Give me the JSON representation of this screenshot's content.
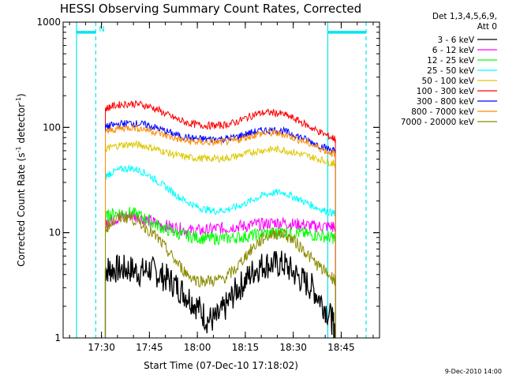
{
  "chart_data": {
    "type": "line",
    "title": "HESSI Observing Summary Count Rates, Corrected",
    "xlabel": "Start Time (07-Dec-10 17:18:02)",
    "ylabel_main": "Corrected Count Rate (s",
    "ylabel_sup1": "-1",
    "ylabel_mid": " detector",
    "ylabel_sup2": "-1",
    "ylabel_end": ")",
    "y_scale": "log",
    "ylim": [
      1,
      1000
    ],
    "xlim_minutes": [
      17.3,
      18.95
    ],
    "x_tick_labels": [
      "17:30",
      "17:45",
      "18:00",
      "18:15",
      "18:30",
      "18:45"
    ],
    "x_tick_values": [
      17.5,
      17.75,
      18.0,
      18.25,
      18.5,
      18.75
    ],
    "y_tick_labels": [
      "1",
      "10",
      "100",
      "1000"
    ],
    "y_tick_values": [
      1,
      10,
      100,
      1000
    ],
    "legend_header": [
      "Det 1,3,4,5,6,9,",
      "Att 0"
    ],
    "legend_placement": "right",
    "series": [
      {
        "name": "3 - 6 keV",
        "color": "#000000",
        "x": [
          17.52,
          17.55,
          17.6,
          17.65,
          17.7,
          17.75,
          17.8,
          17.85,
          17.9,
          17.95,
          18.0,
          18.05,
          18.1,
          18.15,
          18.2,
          18.25,
          18.3,
          18.35,
          18.4,
          18.45,
          18.5,
          18.55,
          18.6,
          18.65,
          18.7,
          18.72
        ],
        "values": [
          4.5,
          4.5,
          4.5,
          4.5,
          4.2,
          4.5,
          4.0,
          3.6,
          3.0,
          2.5,
          2.0,
          1.5,
          1.5,
          2.0,
          2.8,
          3.5,
          4.5,
          5.0,
          5.0,
          5.0,
          4.2,
          3.5,
          3.0,
          2.2,
          1.5,
          1.2
        ]
      },
      {
        "name": "6 - 12 keV",
        "color": "#ff00ff",
        "x": [
          17.52,
          17.55,
          17.6,
          17.65,
          17.7,
          17.75,
          17.8,
          17.85,
          17.9,
          17.95,
          18.0,
          18.05,
          18.1,
          18.15,
          18.2,
          18.25,
          18.3,
          18.35,
          18.4,
          18.45,
          18.5,
          18.55,
          18.6,
          18.65,
          18.7,
          18.72
        ],
        "values": [
          12,
          13,
          14,
          14.5,
          14,
          13,
          12,
          11.5,
          11,
          10.5,
          10.5,
          10.5,
          11,
          11,
          11.5,
          11.5,
          12,
          12,
          12.5,
          12.5,
          12,
          12,
          11.5,
          11.5,
          11.5,
          11
        ]
      },
      {
        "name": "12 - 25 keV",
        "color": "#00ff00",
        "x": [
          17.52,
          17.55,
          17.6,
          17.65,
          17.7,
          17.75,
          17.8,
          17.85,
          17.9,
          17.95,
          18.0,
          18.05,
          18.1,
          18.15,
          18.2,
          18.25,
          18.3,
          18.35,
          18.4,
          18.45,
          18.5,
          18.55,
          18.6,
          18.65,
          18.7,
          18.72
        ],
        "values": [
          14,
          15,
          15.5,
          15.5,
          14.5,
          13,
          11.5,
          10.5,
          9.8,
          9.3,
          9.0,
          8.8,
          8.8,
          8.8,
          9.0,
          9.2,
          9.5,
          9.8,
          10,
          10.2,
          10,
          9.8,
          9.5,
          9.3,
          9.0,
          8.8
        ]
      },
      {
        "name": "25 - 50 keV",
        "color": "#00ffff",
        "x": [
          17.52,
          17.55,
          17.6,
          17.65,
          17.7,
          17.75,
          17.8,
          17.85,
          17.9,
          17.95,
          18.0,
          18.05,
          18.1,
          18.15,
          18.2,
          18.25,
          18.3,
          18.35,
          18.4,
          18.45,
          18.5,
          18.55,
          18.6,
          18.65,
          18.7,
          18.72
        ],
        "values": [
          34,
          37,
          40,
          41,
          39,
          35,
          30,
          26,
          22,
          19.5,
          17.5,
          16.5,
          16,
          16.5,
          17.5,
          19,
          21,
          23,
          24,
          24,
          22,
          20,
          18,
          16.5,
          15.5,
          15
        ]
      },
      {
        "name": "50 - 100 keV",
        "color": "#dcc800",
        "x": [
          17.52,
          17.55,
          17.6,
          17.65,
          17.7,
          17.75,
          17.8,
          17.85,
          17.9,
          17.95,
          18.0,
          18.05,
          18.1,
          18.15,
          18.2,
          18.25,
          18.3,
          18.35,
          18.4,
          18.45,
          18.5,
          18.55,
          18.6,
          18.65,
          18.7,
          18.72
        ],
        "values": [
          62,
          65,
          68,
          69,
          68,
          65,
          61,
          57,
          54,
          52,
          51,
          50.5,
          50.5,
          51,
          53,
          56,
          59,
          61,
          62,
          61,
          58,
          55,
          52,
          49,
          46,
          45
        ]
      },
      {
        "name": "100 - 300 keV",
        "color": "#ff0000",
        "x": [
          17.52,
          17.55,
          17.6,
          17.65,
          17.7,
          17.75,
          17.8,
          17.85,
          17.9,
          17.95,
          18.0,
          18.05,
          18.1,
          18.15,
          18.2,
          18.25,
          18.3,
          18.35,
          18.4,
          18.45,
          18.5,
          18.55,
          18.6,
          18.65,
          18.7,
          18.72
        ],
        "values": [
          150,
          158,
          165,
          168,
          166,
          158,
          145,
          130,
          118,
          110,
          106,
          104,
          104,
          106,
          112,
          122,
          133,
          138,
          138,
          133,
          122,
          110,
          98,
          88,
          80,
          78
        ]
      },
      {
        "name": "300 - 800 keV",
        "color": "#0000ff",
        "x": [
          17.52,
          17.55,
          17.6,
          17.65,
          17.7,
          17.75,
          17.8,
          17.85,
          17.9,
          17.95,
          18.0,
          18.05,
          18.1,
          18.15,
          18.2,
          18.25,
          18.3,
          18.35,
          18.4,
          18.45,
          18.5,
          18.55,
          18.6,
          18.65,
          18.7,
          18.72
        ],
        "values": [
          100,
          104,
          108,
          110,
          108,
          104,
          97,
          90,
          84,
          80,
          78,
          77.5,
          77.5,
          78,
          81,
          86,
          91,
          94,
          94,
          92,
          86,
          79,
          72,
          66,
          61,
          60
        ]
      },
      {
        "name": "800 - 7000 keV",
        "color": "#ff8c00",
        "x": [
          17.52,
          17.55,
          17.6,
          17.65,
          17.7,
          17.75,
          17.8,
          17.85,
          17.9,
          17.95,
          18.0,
          18.05,
          18.1,
          18.15,
          18.2,
          18.25,
          18.3,
          18.35,
          18.4,
          18.45,
          18.5,
          18.55,
          18.6,
          18.65,
          18.7,
          18.72
        ],
        "values": [
          90,
          94,
          98,
          100,
          98,
          94,
          88,
          82,
          77,
          74,
          72.5,
          72,
          72,
          73,
          75,
          80,
          85,
          88,
          88,
          86,
          80,
          74,
          68,
          62,
          57,
          56
        ]
      },
      {
        "name": "7000 - 20000 keV",
        "color": "#8b8b00",
        "x": [
          17.52,
          17.55,
          17.6,
          17.65,
          17.7,
          17.75,
          17.8,
          17.85,
          17.9,
          17.95,
          18.0,
          18.05,
          18.1,
          18.15,
          18.2,
          18.25,
          18.3,
          18.35,
          18.4,
          18.45,
          18.5,
          18.55,
          18.6,
          18.65,
          18.7,
          18.72
        ],
        "values": [
          11,
          12.5,
          14,
          14,
          12.5,
          10.5,
          8.5,
          6.5,
          5,
          4,
          3.5,
          3.5,
          3.5,
          3.8,
          4.5,
          6,
          7.5,
          9,
          9.8,
          9.8,
          8.5,
          7,
          5.5,
          4.5,
          3.8,
          3.5
        ]
      }
    ],
    "annotations": {
      "bar_level": 800,
      "bar_color": "#00e5ee",
      "night_marker": "N",
      "dashed_lines_x": [
        17.47,
        18.88
      ],
      "solid_lines_x": [
        17.37,
        18.68
      ],
      "bars": [
        [
          17.37,
          17.47
        ],
        [
          18.68,
          18.88
        ]
      ]
    },
    "footer": "9-Dec-2010 14:00"
  }
}
